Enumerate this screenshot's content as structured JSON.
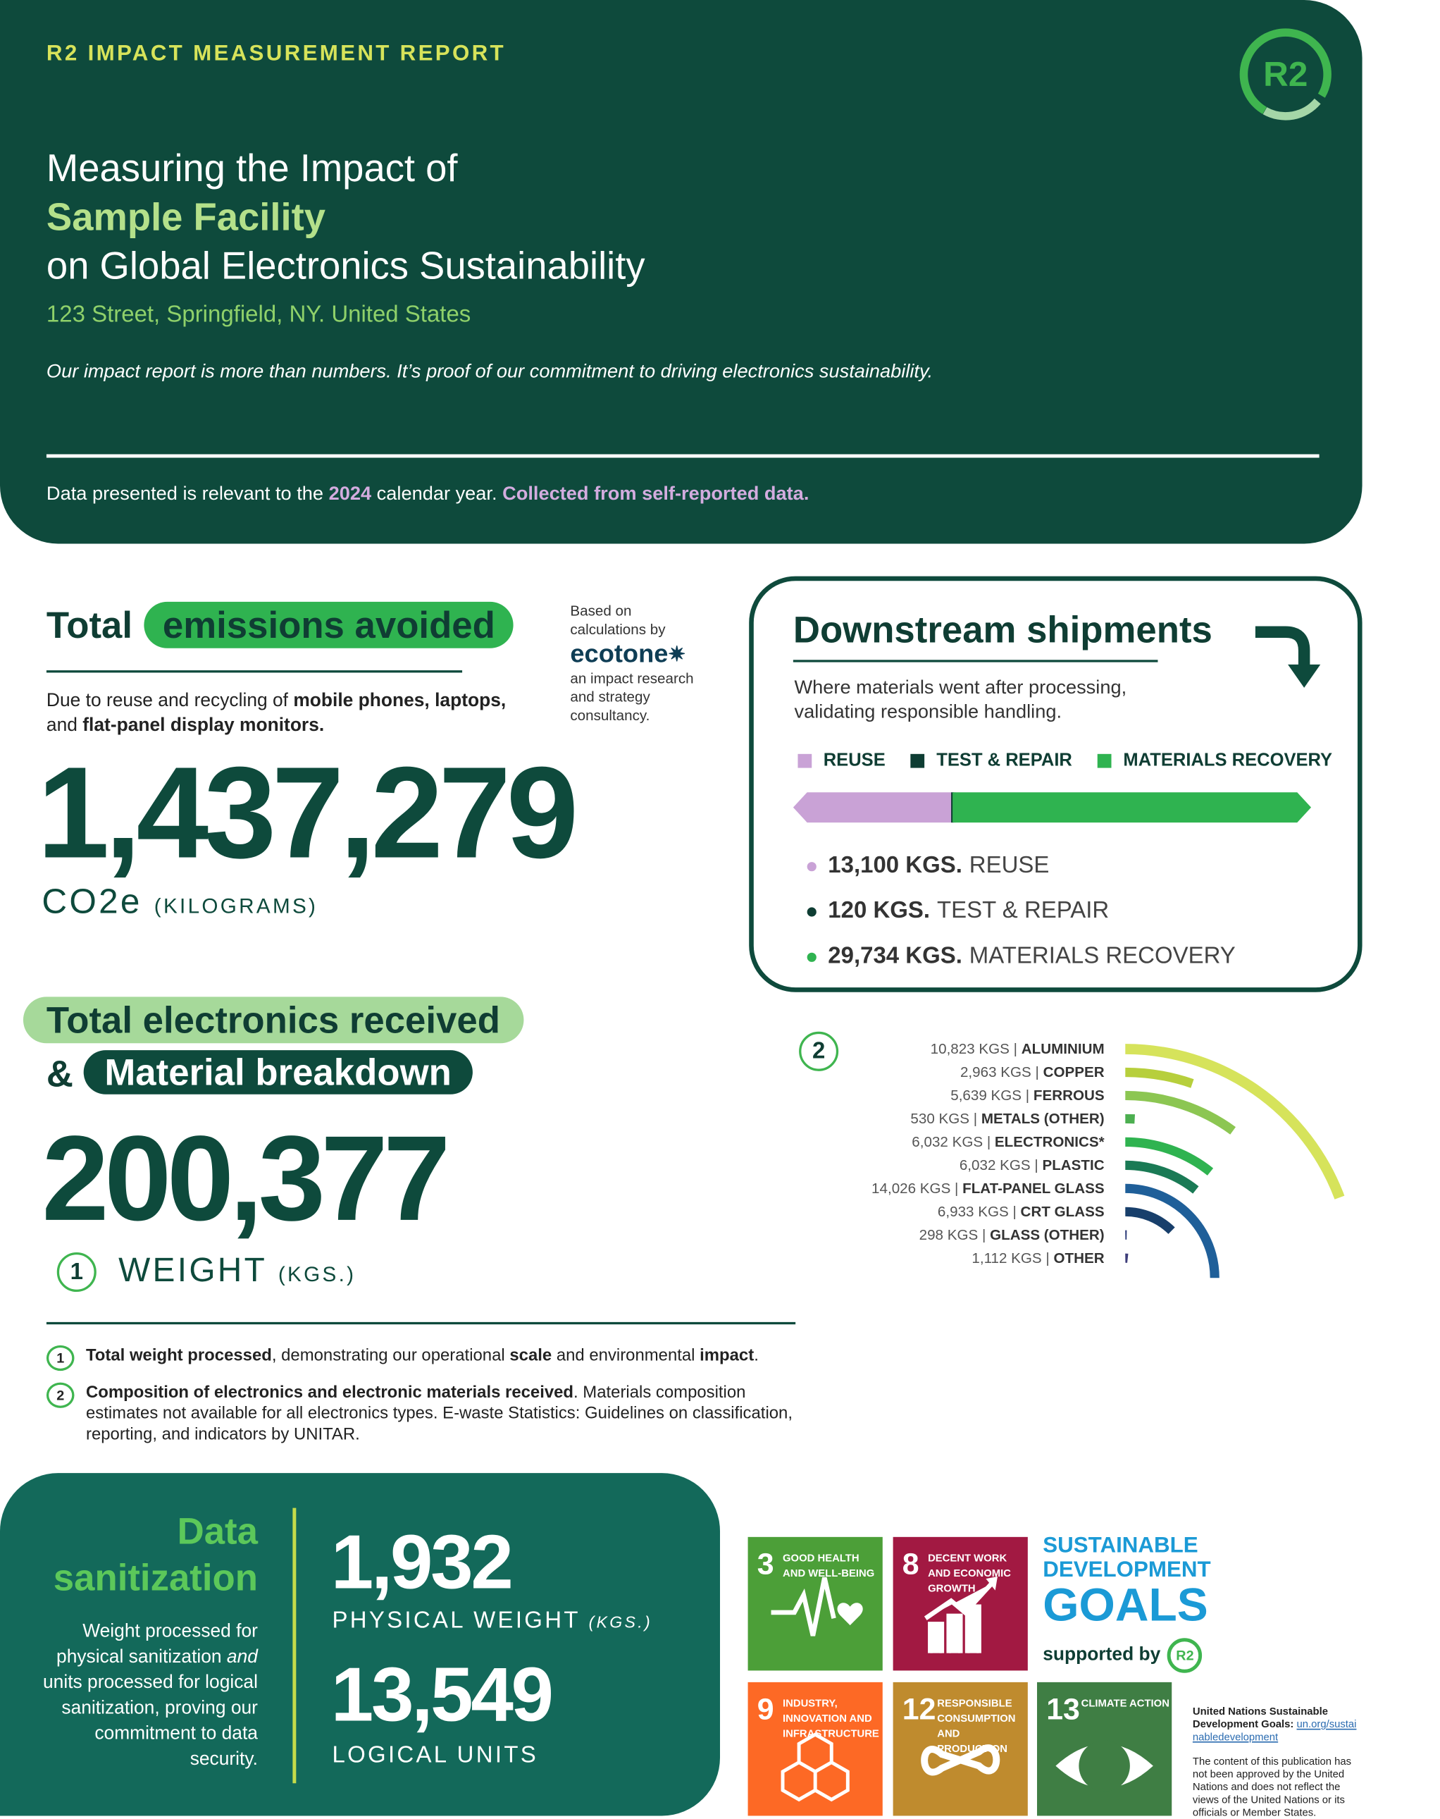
{
  "header": {
    "kicker": "R2 IMPACT MEASUREMENT REPORT",
    "logo": "R2",
    "title_line1": "Measuring the Impact of",
    "facility": "Sample Facility",
    "title_line3": "on Global Electronics Sustainability",
    "address": "123 Street, Springfield, NY. United States",
    "tagline": "Our impact report is more than numbers. It’s proof of our commitment to driving electronics sustainability.",
    "note_pre": "Data presented is relevant to the ",
    "note_year": "2024",
    "note_mid": " calendar year. ",
    "note_source": "Collected from self-reported data."
  },
  "emissions": {
    "title_plain": "Total",
    "title_pill": "emissions avoided",
    "desc_pre": "Due to reuse and recycling of ",
    "desc_b1": "mobile phones,",
    "desc_b2": "laptops,",
    "desc_mid": " and ",
    "desc_b3": "flat-panel display monitors.",
    "value": "1,437,279",
    "unit": "CO2e",
    "unit_sub": "(KILOGRAMS)",
    "credit_pre": "Based on calculations by",
    "credit_brand": "ecotone",
    "credit_post": "an impact research and strategy consultancy."
  },
  "downstream": {
    "title": "Downstream shipments",
    "subtitle": "Where materials went after processing, validating responsible handling.",
    "legend": [
      {
        "label": "REUSE",
        "color": "#c9a2d6"
      },
      {
        "label": "TEST & REPAIR",
        "color": "#0e3d33"
      },
      {
        "label": "MATERIALS RECOVERY",
        "color": "#2fb350"
      }
    ],
    "items": [
      {
        "value": "13,100 KGS.",
        "label": "REUSE",
        "kg": 13100,
        "color": "#c9a2d6"
      },
      {
        "value": "120 KGS.",
        "label": "TEST & REPAIR",
        "kg": 120,
        "color": "#0e3d33"
      },
      {
        "value": "29,734 KGS.",
        "label": "MATERIALS RECOVERY",
        "kg": 29734,
        "color": "#2fb350"
      }
    ]
  },
  "received": {
    "title1": "Total electronics received",
    "amp": "&",
    "title2": "Material breakdown",
    "value": "200,377",
    "marker": "1",
    "unit": "WEIGHT",
    "unit_sub": "(KGS.)"
  },
  "materials": {
    "marker": "2",
    "items": [
      {
        "value": "10,823 KGS",
        "label": "ALUMINIUM",
        "kg": 10823,
        "color": "#d6e35b"
      },
      {
        "value": "2,963 KGS",
        "label": "COPPER",
        "kg": 2963,
        "color": "#b7cf3c"
      },
      {
        "value": "5,639 KGS",
        "label": "FERROUS",
        "kg": 5639,
        "color": "#8cc652"
      },
      {
        "value": "530 KGS",
        "label": "METALS (OTHER)",
        "kg": 530,
        "color": "#4caf50"
      },
      {
        "value": "6,032 KGS",
        "label": "ELECTRONICS*",
        "kg": 6032,
        "color": "#2fb350"
      },
      {
        "value": "6,032 KGS",
        "label": "PLASTIC",
        "kg": 6032,
        "color": "#1a7a55"
      },
      {
        "value": "14,026 KGS",
        "label": "FLAT-PANEL GLASS",
        "kg": 14026,
        "color": "#1f5f99"
      },
      {
        "value": "6,933 KGS",
        "label": "CRT GLASS",
        "kg": 6933,
        "color": "#183f6b"
      },
      {
        "value": "298 KGS",
        "label": "GLASS (OTHER)",
        "kg": 298,
        "color": "#2b3a78"
      },
      {
        "value": "1,112 KGS",
        "label": "OTHER",
        "kg": 1112,
        "color": "#3d3d7a"
      }
    ]
  },
  "footnotes": [
    {
      "n": "1",
      "b1": "Total weight processed",
      "t1": ", demonstrating our operational ",
      "b2": "scale",
      "t2": " and environmental ",
      "b3": "impact",
      "t3": "."
    },
    {
      "n": "2",
      "b1": "Composition of electronics and electronic materials received",
      "t1": ". Materials composition estimates not available for all electronics types. E-waste Statistics: Guidelines on classification, reporting, and indicators by UNITAR."
    }
  ],
  "sanitization": {
    "title1": "Data",
    "title2": "sanitization",
    "desc_1": "Weight processed for physical sanitization",
    "desc_and": "and",
    "desc_2": "units processed for logical sanitization, proving our commitment to data security.",
    "physical_value": "1,932",
    "physical_label": "PHYSICAL WEIGHT",
    "physical_unit": "(KGS.)",
    "logical_value": "13,549",
    "logical_label": "LOGICAL UNITS"
  },
  "sdg": {
    "tiles": [
      {
        "n": "3",
        "t": "Good health and well-being",
        "color": "#4c9f38"
      },
      {
        "n": "8",
        "t": "Decent work and economic growth",
        "color": "#a21942"
      },
      {
        "n": "9",
        "t": "Industry, innovation and infrastructure",
        "color": "#fd6925"
      },
      {
        "n": "12",
        "t": "Responsible consumption and production",
        "color": "#bf8b2e"
      },
      {
        "n": "13",
        "t": "Climate action",
        "color": "#3f7e44"
      }
    ],
    "logo_l1": "SUSTAINABLE",
    "logo_l2": "DEVELOPMENT",
    "logo_l3": "GOALS",
    "supported": "supported by",
    "supported_logo": "R2",
    "un_b": "United Nations Sustainable Development Goals:",
    "un_link": "un.org/sustainabledevelopment",
    "disclaimer": "The content of this publication has not been approved by the United Nations and does not reflect the views of the United Nations or its officials or Member States."
  }
}
